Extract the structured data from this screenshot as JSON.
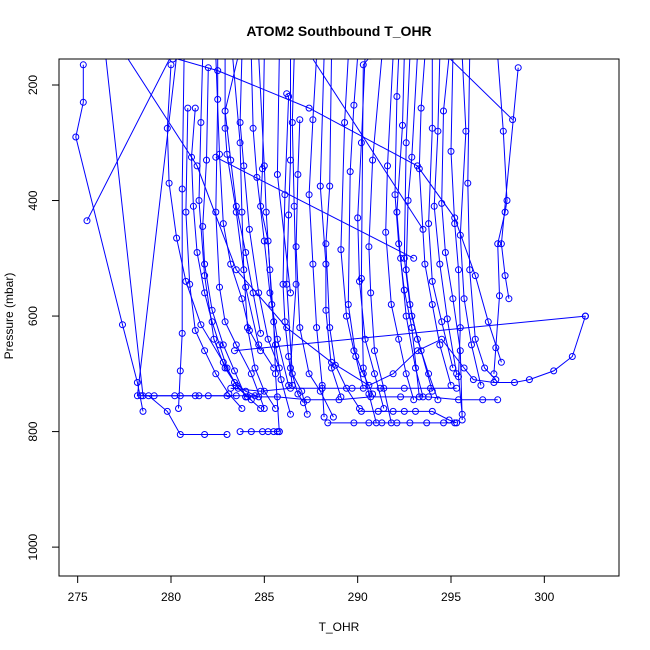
{
  "chart_data": {
    "type": "line",
    "title": "ATOM2 Southbound T_OHR",
    "xlabel": "T_OHR",
    "ylabel": "Pressure (mbar)",
    "xlim": [
      274,
      304
    ],
    "ylim": [
      1050,
      155
    ],
    "y_reversed": true,
    "x_ticks": [
      275,
      280,
      285,
      290,
      295,
      300
    ],
    "y_ticks": [
      200,
      400,
      600,
      800,
      1000
    ],
    "grid": false,
    "legend": "none",
    "color": "#0000ff",
    "marker": "open-circle",
    "series": [
      {
        "x": [
          275.3,
          275.3,
          274.9,
          277.4,
          278.2,
          278.5
        ],
        "y": [
          165,
          230,
          290,
          615,
          715,
          765
        ]
      },
      {
        "x": [
          275.5,
          280.0,
          280.1
        ],
        "y": [
          435,
          150,
          155
        ],
        "note_ignored": ""
      },
      {
        "x": [
          276.5,
          278.5,
          279.1,
          280.5,
          281.3,
          282.0,
          283.5
        ],
        "y": [
          150,
          738,
          738,
          738,
          738,
          738,
          738
        ]
      },
      {
        "x": [
          278.4,
          278.8,
          279.8,
          280.5,
          281.8,
          283.0
        ],
        "y": [
          738,
          738,
          765,
          805,
          805,
          805
        ]
      },
      {
        "x": [
          280.0,
          279.8,
          279.9,
          280.3,
          280.8,
          281.6,
          282.8,
          283.6,
          284.3
        ],
        "y": [
          165,
          275,
          370,
          465,
          540,
          615,
          680,
          725,
          745
        ]
      },
      {
        "x": [
          280.3,
          278.2,
          280.2,
          281.5,
          283.0,
          284.5
        ],
        "y": [
          150,
          738,
          738,
          738,
          738,
          738
        ]
      },
      {
        "x": [
          280.7,
          280.6,
          280.6,
          280.5,
          280.4
        ],
        "y": [
          150,
          380,
          630,
          695,
          760
        ]
      },
      {
        "x": [
          280.9,
          280.8,
          281.0,
          281.3,
          281.8,
          282.4,
          283.1,
          283.8
        ],
        "y": [
          240,
          420,
          545,
          625,
          660,
          700,
          735,
          760
        ]
      },
      {
        "x": [
          281.3,
          281.1,
          281.2,
          281.4,
          281.8,
          282.2,
          282.6,
          283.0,
          283.5,
          284.1,
          284.8
        ],
        "y": [
          240,
          325,
          410,
          490,
          560,
          610,
          650,
          690,
          720,
          740,
          760
        ]
      },
      {
        "x": [
          281.7,
          281.6,
          281.5,
          281.8,
          282.3,
          282.9,
          283.4,
          284.0,
          284.7
        ],
        "y": [
          150,
          265,
          400,
          530,
          640,
          690,
          715,
          730,
          740
        ]
      },
      {
        "x": [
          282.0,
          281.9,
          281.7,
          281.8,
          282.2,
          282.8,
          283.4,
          284.0
        ],
        "y": [
          170,
          330,
          445,
          510,
          590,
          650,
          695,
          740
        ]
      },
      {
        "x": [
          282.4,
          282.6,
          282.8,
          283.2,
          283.8,
          284.2,
          284.8
        ],
        "y": [
          150,
          320,
          440,
          510,
          570,
          625,
          660
        ]
      },
      {
        "x": [
          282.5,
          282.5,
          282.4,
          282.6,
          282.9,
          283.5,
          284.3,
          285.0
        ],
        "y": [
          150,
          225,
          420,
          550,
          610,
          650,
          700,
          760
        ]
      },
      {
        "x": [
          282.9,
          282.9,
          283.0,
          283.5,
          284.0,
          284.7,
          285.5
        ],
        "y": [
          150,
          275,
          320,
          420,
          550,
          650,
          690
        ]
      },
      {
        "x": [
          283.3,
          283.7,
          283.8,
          283.9,
          284.1,
          284.5,
          285.0,
          285.6
        ],
        "y": [
          150,
          300,
          420,
          520,
          620,
          690,
          730,
          760
        ]
      },
      {
        "x": [
          283.6,
          282.9,
          283.2,
          283.5,
          284.0,
          284.4,
          284.8
        ],
        "y": [
          150,
          245,
          330,
          410,
          490,
          560,
          630
        ]
      },
      {
        "x": [
          283.8,
          283.7,
          283.9,
          284.2,
          284.7,
          285.2,
          285.8
        ],
        "y": [
          150,
          265,
          340,
          450,
          560,
          640,
          690
        ]
      },
      {
        "x": [
          284.3,
          284.4,
          284.6,
          285.0,
          285.3,
          285.7,
          286.3
        ],
        "y": [
          150,
          275,
          360,
          470,
          560,
          640,
          720
        ]
      },
      {
        "x": [
          284.7,
          285.0,
          285.1,
          285.3,
          285.5,
          285.6,
          285.8
        ],
        "y": [
          150,
          340,
          420,
          520,
          610,
          700,
          800
        ]
      },
      {
        "x": [
          285.0,
          284.9,
          284.8,
          285.2,
          285.4,
          285.6,
          285.9,
          286.4
        ],
        "y": [
          150,
          345,
          410,
          470,
          580,
          650,
          710,
          770
        ]
      },
      {
        "x": [
          285.8,
          285.7,
          286.4
        ],
        "y": [
          150,
          355,
          560
        ]
      },
      {
        "x": [
          286.2,
          286.3,
          286.1,
          286.0,
          286.1,
          286.3,
          286.5
        ],
        "y": [
          215,
          220,
          390,
          545,
          610,
          670,
          720
        ]
      },
      {
        "x": [
          286.4,
          286.4,
          286.3,
          286.2,
          286.5,
          287.0,
          287.3
        ],
        "y": [
          150,
          330,
          425,
          545,
          700,
          730,
          770
        ]
      },
      {
        "x": [
          286.6,
          286.5,
          286.6,
          286.7,
          286.4,
          286.8,
          287.1
        ],
        "y": [
          150,
          265,
          410,
          545,
          690,
          735,
          750
        ]
      },
      {
        "x": [
          286.9,
          286.8,
          286.7,
          286.9,
          287.4,
          288.0,
          288.7
        ],
        "y": [
          260,
          355,
          480,
          620,
          700,
          730,
          775
        ]
      },
      {
        "x": [
          287.8,
          287.6,
          287.4,
          287.6,
          287.8,
          288.1,
          288.2
        ],
        "y": [
          150,
          260,
          390,
          510,
          620,
          720,
          775
        ]
      },
      {
        "x": [
          288.2,
          288.0,
          288.3,
          288.3,
          288.6,
          289.1
        ],
        "y": [
          150,
          375,
          510,
          590,
          690,
          740
        ]
      },
      {
        "x": [
          288.6,
          288.5,
          288.3,
          288.5,
          288.8,
          289.4,
          290.1
        ],
        "y": [
          150,
          375,
          475,
          620,
          685,
          725,
          760
        ]
      },
      {
        "x": [
          289.5,
          289.3,
          289.1,
          289.4,
          289.8,
          290.3,
          290.8
        ],
        "y": [
          150,
          265,
          485,
          600,
          660,
          700,
          735
        ]
      },
      {
        "x": [
          290.0,
          289.8,
          289.6,
          289.5,
          289.9,
          290.3
        ],
        "y": [
          150,
          235,
          350,
          580,
          670,
          725
        ]
      },
      {
        "x": [
          290.4,
          290.2,
          290.0,
          290.1,
          290.4,
          290.9,
          291.4
        ],
        "y": [
          150,
          300,
          430,
          540,
          640,
          700,
          760
        ]
      },
      {
        "x": [
          290.7,
          290.3,
          290.2,
          290.3,
          290.6,
          291.0
        ],
        "y": [
          150,
          165,
          535,
          690,
          735,
          785
        ]
      },
      {
        "x": [
          291.3,
          290.8,
          290.6,
          290.7,
          290.9,
          291.4,
          291.8
        ],
        "y": [
          150,
          330,
          480,
          560,
          660,
          725,
          785
        ]
      },
      {
        "x": [
          291.9,
          291.6,
          291.5,
          291.8,
          292.2,
          292.6,
          293.0
        ],
        "y": [
          150,
          340,
          455,
          580,
          640,
          700,
          745
        ]
      },
      {
        "x": [
          292.2,
          292.1,
          292.0,
          292.2,
          292.5,
          292.9,
          293.3
        ],
        "y": [
          150,
          220,
          390,
          475,
          555,
          620,
          740
        ]
      },
      {
        "x": [
          292.5,
          292.4,
          292.1,
          292.3,
          292.6,
          293.1,
          293.5
        ],
        "y": [
          150,
          270,
          420,
          500,
          600,
          690,
          740
        ]
      },
      {
        "x": [
          292.8,
          292.6,
          292.5,
          292.8,
          293.2,
          293.8,
          294.3
        ],
        "y": [
          150,
          300,
          500,
          580,
          640,
          700,
          745
        ]
      },
      {
        "x": [
          293.2,
          292.9,
          292.7,
          292.6,
          292.9,
          293.4,
          294.0
        ],
        "y": [
          150,
          325,
          400,
          520,
          600,
          660,
          730
        ]
      },
      {
        "x": [
          293.6,
          293.4,
          293.3,
          293.6,
          294.0,
          294.4,
          295.0
        ],
        "y": [
          150,
          240,
          345,
          510,
          580,
          650,
          720
        ]
      },
      {
        "x": [
          294.0,
          294.0,
          293.8,
          294.0,
          294.5,
          295.1
        ],
        "y": [
          150,
          275,
          440,
          540,
          610,
          690
        ]
      },
      {
        "x": [
          294.4,
          294.3,
          294.1,
          294.4,
          294.8,
          295.3
        ],
        "y": [
          150,
          280,
          410,
          510,
          605,
          700
        ]
      },
      {
        "x": [
          294.9,
          294.6,
          294.5,
          294.7,
          295.1,
          295.5,
          295.6
        ],
        "y": [
          150,
          245,
          405,
          490,
          570,
          660,
          780
        ]
      },
      {
        "x": [
          295.1,
          295.0,
          295.2,
          295.4,
          295.5,
          295.4,
          295.6
        ],
        "y": [
          150,
          315,
          440,
          520,
          620,
          705,
          770
        ]
      },
      {
        "x": [
          295.6,
          295.8,
          295.5,
          295.7,
          296.1,
          296.6
        ],
        "y": [
          150,
          280,
          460,
          570,
          650,
          720
        ]
      },
      {
        "x": [
          296.0,
          295.9,
          296.0,
          296.3,
          296.8,
          297.4
        ],
        "y": [
          150,
          370,
          520,
          640,
          690,
          710
        ]
      },
      {
        "x": [
          297.5,
          297.8,
          298.0,
          297.9,
          297.5,
          297.6,
          297.4,
          297.3
        ],
        "y": [
          150,
          280,
          400,
          420,
          475,
          565,
          655,
          700
        ]
      },
      {
        "x": [
          294.8,
          298.3
        ],
        "y": [
          150,
          260
        ]
      },
      {
        "x": [
          298.6,
          297.7,
          297.9,
          298.1
        ],
        "y": [
          170,
          475,
          530,
          570
        ]
      },
      {
        "x": [
          279.8,
          282.5,
          287.4,
          293.2,
          295.2,
          296.3,
          297.0,
          297.7
        ],
        "y": [
          150,
          175,
          240,
          340,
          430,
          530,
          610,
          680
        ]
      },
      {
        "x": [
          287.5,
          293.5
        ],
        "y": [
          150,
          450
        ]
      },
      {
        "x": [
          282.4,
          293.0
        ],
        "y": [
          325,
          500
        ]
      },
      {
        "x": [
          283.4,
          302.2
        ],
        "y": [
          660,
          600
        ]
      },
      {
        "x": [
          277.6,
          281.4,
          283.5,
          286.2,
          288.6,
          290.6,
          291.9,
          293.2,
          294.5,
          295.7,
          296.2,
          297.3,
          298.4,
          299.2,
          300.5,
          301.5,
          302.2
        ],
        "y": [
          150,
          340,
          520,
          620,
          680,
          720,
          700,
          660,
          640,
          690,
          710,
          715,
          715,
          710,
          695,
          670,
          600
        ]
      },
      {
        "x": [
          283.2,
          284.8,
          286.4,
          288.1,
          289.7,
          291.2,
          292.5,
          293.9,
          295.3
        ],
        "y": [
          725,
          730,
          725,
          725,
          725,
          725,
          725,
          725,
          725
        ]
      },
      {
        "x": [
          284.0,
          285.7,
          287.3,
          289.0,
          290.7,
          292.3,
          293.8,
          295.4,
          296.7,
          297.5
        ],
        "y": [
          740,
          740,
          745,
          745,
          740,
          740,
          740,
          745,
          745,
          745
        ]
      },
      {
        "x": [
          283.7,
          284.3,
          284.9,
          285.2,
          285.5,
          285.7,
          285.8
        ],
        "y": [
          800,
          800,
          800,
          800,
          800,
          800,
          800
        ]
      },
      {
        "x": [
          288.4,
          289.8,
          290.6,
          291.3,
          292.1,
          292.8,
          293.7,
          294.6,
          295.2
        ],
        "y": [
          785,
          785,
          785,
          785,
          785,
          785,
          785,
          785,
          785
        ]
      },
      {
        "x": [
          290.2,
          291.1,
          291.9,
          292.5,
          293.1,
          294.0,
          294.9,
          295.3
        ],
        "y": [
          765,
          765,
          765,
          765,
          765,
          765,
          780,
          785
        ]
      }
    ]
  }
}
